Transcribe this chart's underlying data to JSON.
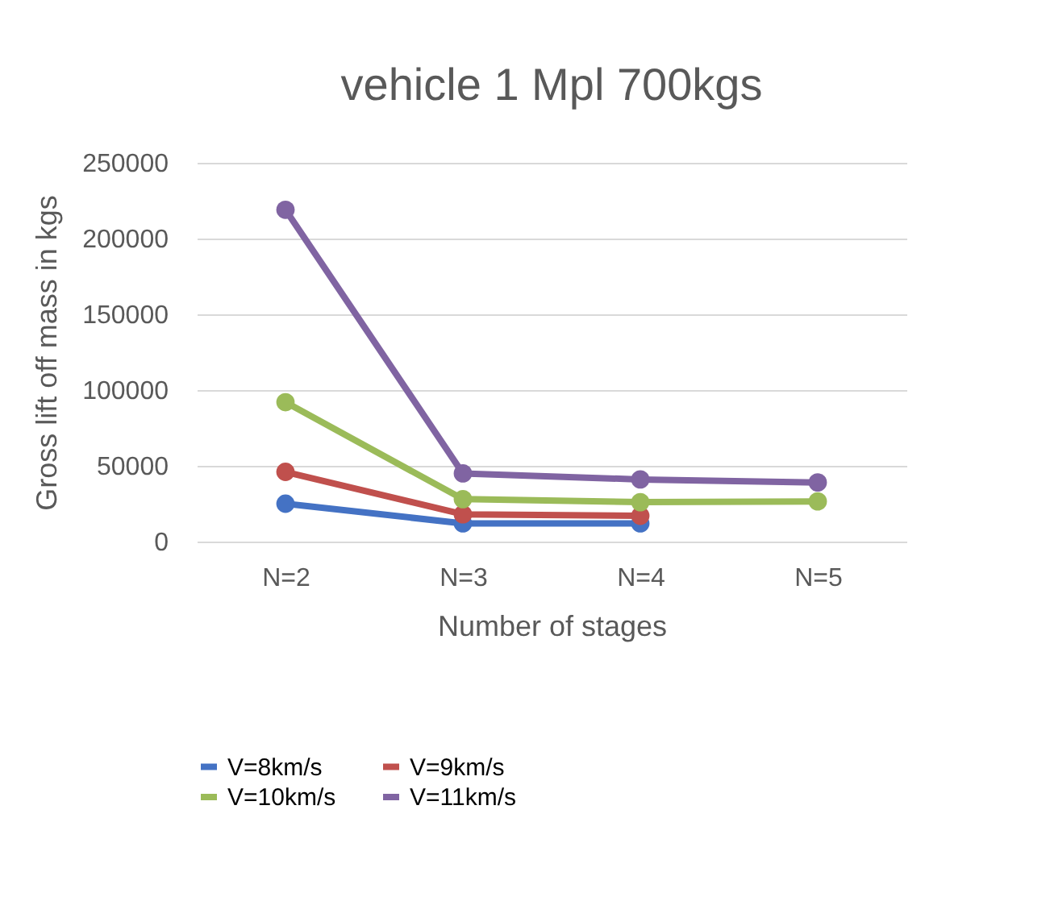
{
  "chart_data": {
    "type": "line",
    "title": "vehicle 1 Mpl 700kgs",
    "xlabel": "Number of stages",
    "ylabel": "Gross lift off mass in kgs",
    "categories": [
      "N=2",
      "N=3",
      "N=4",
      "N=5"
    ],
    "series": [
      {
        "name": "V=8km/s",
        "color": "#4472c4",
        "values": [
          25000,
          12000,
          12000,
          null
        ]
      },
      {
        "name": "V=9km/s",
        "color": "#c0504d",
        "values": [
          46000,
          18000,
          17000,
          null
        ]
      },
      {
        "name": "V=10km/s",
        "color": "#9bbb59",
        "values": [
          92000,
          28000,
          26000,
          26500
        ]
      },
      {
        "name": "V=11km/s",
        "color": "#8064a2",
        "values": [
          219000,
          45000,
          41000,
          39000
        ]
      }
    ],
    "ylim": [
      0,
      250000
    ],
    "yticks": [
      0,
      50000,
      100000,
      150000,
      200000,
      250000
    ],
    "grid": "y",
    "legend": "bottom",
    "marker": "circle",
    "line_style": "solid"
  }
}
